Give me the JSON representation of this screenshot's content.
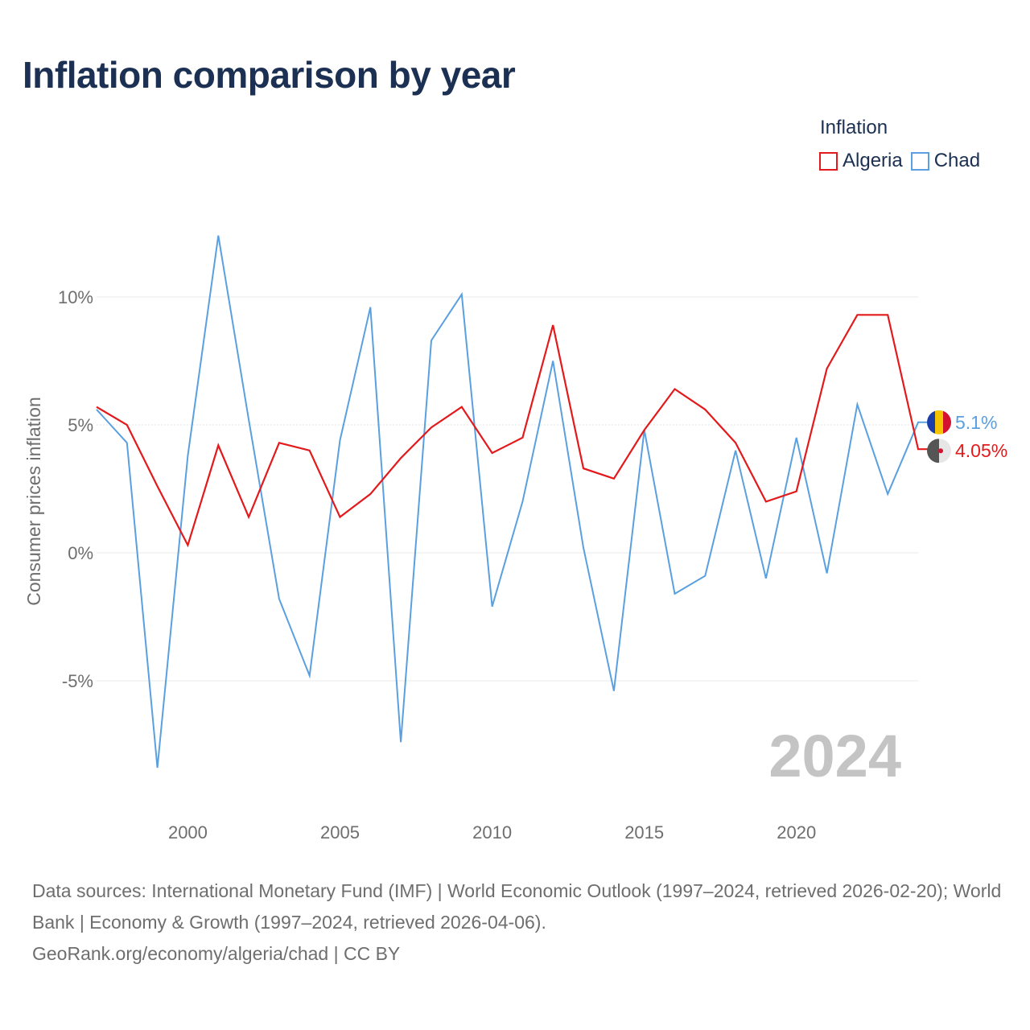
{
  "title": "Inflation comparison by year",
  "legend": {
    "title": "Inflation",
    "items": [
      {
        "label": "Algeria",
        "color": "#e31a1c"
      },
      {
        "label": "Chad",
        "color": "#5aa0e0"
      }
    ]
  },
  "chart_data": {
    "type": "line",
    "title": "Inflation comparison by year",
    "ylabel": "Consumer prices inflation",
    "xlabel": "",
    "xlim": [
      1997,
      2024
    ],
    "ylim": [
      -9,
      12.5
    ],
    "yticks": [
      -5,
      0,
      5,
      10
    ],
    "ytick_labels": [
      "-5%",
      "0%",
      "5%",
      "10%"
    ],
    "xticks": [
      2000,
      2005,
      2010,
      2015,
      2020
    ],
    "xtick_labels": [
      "2000",
      "2005",
      "2010",
      "2015",
      "2020"
    ],
    "grid": true,
    "watermark_year": "2024",
    "x": [
      1997,
      1998,
      1999,
      2000,
      2001,
      2002,
      2003,
      2004,
      2005,
      2006,
      2007,
      2008,
      2009,
      2010,
      2011,
      2012,
      2013,
      2014,
      2015,
      2016,
      2017,
      2018,
      2019,
      2020,
      2021,
      2022,
      2023,
      2024
    ],
    "series": [
      {
        "name": "Algeria",
        "color": "#e31a1c",
        "end_label": "4.05%",
        "values": [
          5.7,
          5.0,
          2.6,
          0.3,
          4.2,
          1.4,
          4.3,
          4.0,
          1.4,
          2.3,
          3.7,
          4.9,
          5.7,
          3.9,
          4.5,
          8.9,
          3.3,
          2.9,
          4.8,
          6.4,
          5.6,
          4.3,
          2.0,
          2.4,
          7.2,
          9.3,
          9.3,
          4.05
        ]
      },
      {
        "name": "Chad",
        "color": "#5aa0e0",
        "end_label": "5.1%",
        "values": [
          5.6,
          4.3,
          -8.4,
          3.8,
          12.4,
          5.2,
          -1.8,
          -4.8,
          4.4,
          9.6,
          -7.4,
          8.3,
          10.1,
          -2.1,
          2.0,
          7.5,
          0.2,
          -5.4,
          4.8,
          -1.6,
          -0.9,
          4.0,
          -1.0,
          4.5,
          -0.8,
          5.8,
          2.3,
          5.1
        ]
      }
    ]
  },
  "footer": {
    "sources": "Data sources: International Monetary Fund (IMF) | World Economic Outlook (1997–2024, retrieved 2026-02-20); World Bank | Economy & Growth (1997–2024, retrieved 2026-04-06).",
    "credit": "GeoRank.org/economy/algeria/chad | CC BY"
  }
}
